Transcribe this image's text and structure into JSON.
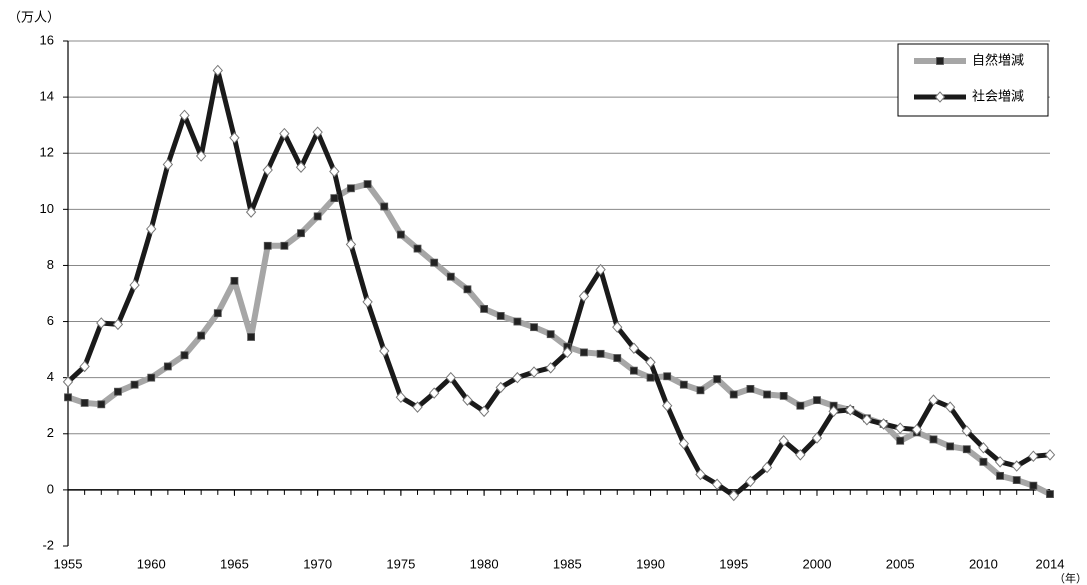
{
  "chart_data": {
    "type": "line",
    "y_unit": "（万人）",
    "x_unit": "（年）",
    "x": [
      1955,
      1956,
      1957,
      1958,
      1959,
      1960,
      1961,
      1962,
      1963,
      1964,
      1965,
      1966,
      1967,
      1968,
      1969,
      1970,
      1971,
      1972,
      1973,
      1974,
      1975,
      1976,
      1977,
      1978,
      1979,
      1980,
      1981,
      1982,
      1983,
      1984,
      1985,
      1986,
      1987,
      1988,
      1989,
      1990,
      1991,
      1992,
      1993,
      1994,
      1995,
      1996,
      1997,
      1998,
      1999,
      2000,
      2001,
      2002,
      2003,
      2004,
      2005,
      2006,
      2007,
      2008,
      2009,
      2010,
      2011,
      2012,
      2013,
      2014
    ],
    "series": [
      {
        "name": "自然増減",
        "color": "#a6a6a6",
        "marker": "square",
        "values": [
          3.3,
          3.1,
          3.05,
          3.5,
          3.75,
          4.0,
          4.4,
          4.8,
          5.5,
          6.3,
          7.45,
          5.45,
          8.7,
          8.7,
          9.15,
          9.75,
          10.4,
          10.75,
          10.9,
          10.1,
          9.1,
          8.6,
          8.1,
          7.6,
          7.15,
          6.45,
          6.2,
          6.0,
          5.8,
          5.55,
          5.1,
          4.9,
          4.85,
          4.7,
          4.25,
          4.0,
          4.05,
          3.75,
          3.55,
          3.95,
          3.4,
          3.6,
          3.4,
          3.35,
          3.0,
          3.2,
          3.0,
          2.85,
          2.55,
          2.35,
          1.75,
          2.05,
          1.8,
          1.55,
          1.45,
          1.0,
          0.5,
          0.35,
          0.15,
          -0.15
        ]
      },
      {
        "name": "社会増減",
        "color": "#1a1a1a",
        "marker": "diamond",
        "values": [
          3.85,
          4.4,
          5.95,
          5.9,
          7.3,
          9.3,
          11.6,
          13.35,
          11.9,
          14.95,
          12.55,
          9.9,
          11.4,
          12.7,
          11.5,
          12.75,
          11.35,
          8.75,
          6.7,
          4.95,
          3.3,
          2.95,
          3.45,
          4.0,
          3.2,
          2.8,
          3.65,
          4.0,
          4.2,
          4.35,
          4.9,
          6.9,
          7.85,
          5.8,
          5.05,
          4.55,
          3.0,
          1.65,
          0.55,
          0.2,
          -0.2,
          0.3,
          0.8,
          1.75,
          1.25,
          1.85,
          2.8,
          2.85,
          2.5,
          2.35,
          2.2,
          2.15,
          3.2,
          2.95,
          2.1,
          1.5,
          1.0,
          0.85,
          1.2,
          1.25
        ]
      }
    ],
    "xlim": [
      1955,
      2014
    ],
    "xticks": [
      1955,
      1960,
      1965,
      1970,
      1975,
      1980,
      1985,
      1990,
      1995,
      2000,
      2005,
      2010,
      2014
    ],
    "ylim": [
      -2,
      16
    ],
    "yticks": [
      -2,
      0,
      2,
      4,
      6,
      8,
      10,
      12,
      14,
      16
    ],
    "grid": true,
    "legend": "upper right"
  }
}
